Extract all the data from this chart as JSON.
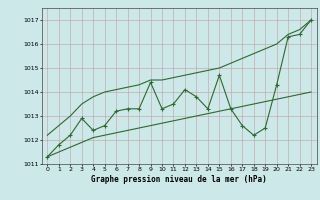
{
  "x": [
    0,
    1,
    2,
    3,
    4,
    5,
    6,
    7,
    8,
    9,
    10,
    11,
    12,
    13,
    14,
    15,
    16,
    17,
    18,
    19,
    20,
    21,
    22,
    23
  ],
  "y_main": [
    1011.3,
    1011.8,
    1012.2,
    1012.9,
    1012.4,
    1012.6,
    1013.2,
    1013.3,
    1013.3,
    1014.4,
    1013.3,
    1013.5,
    1014.1,
    1013.8,
    1013.3,
    1014.7,
    1013.3,
    1012.6,
    1012.2,
    1012.5,
    1014.3,
    1016.3,
    1016.4,
    1017.0
  ],
  "y_upper": [
    1012.2,
    1012.6,
    1013.0,
    1013.5,
    1013.8,
    1014.0,
    1014.1,
    1014.2,
    1014.3,
    1014.5,
    1014.5,
    1014.6,
    1014.7,
    1014.8,
    1014.9,
    1015.0,
    1015.2,
    1015.4,
    1015.6,
    1015.8,
    1016.0,
    1016.4,
    1016.6,
    1017.0
  ],
  "y_lower": [
    1011.3,
    1011.5,
    1011.7,
    1011.9,
    1012.1,
    1012.2,
    1012.3,
    1012.4,
    1012.5,
    1012.6,
    1012.7,
    1012.8,
    1012.9,
    1013.0,
    1013.1,
    1013.2,
    1013.3,
    1013.4,
    1013.5,
    1013.6,
    1013.7,
    1013.8,
    1013.9,
    1014.0
  ],
  "line_color": "#2d6a2d",
  "bg_color": "#cce8e8",
  "grid_color": "#b0c8c8",
  "xlabel": "Graphe pression niveau de la mer (hPa)",
  "ylim": [
    1011,
    1017.5
  ],
  "xlim": [
    -0.5,
    23.5
  ],
  "yticks": [
    1011,
    1012,
    1013,
    1014,
    1015,
    1016,
    1017
  ],
  "xticks": [
    0,
    1,
    2,
    3,
    4,
    5,
    6,
    7,
    8,
    9,
    10,
    11,
    12,
    13,
    14,
    15,
    16,
    17,
    18,
    19,
    20,
    21,
    22,
    23
  ]
}
